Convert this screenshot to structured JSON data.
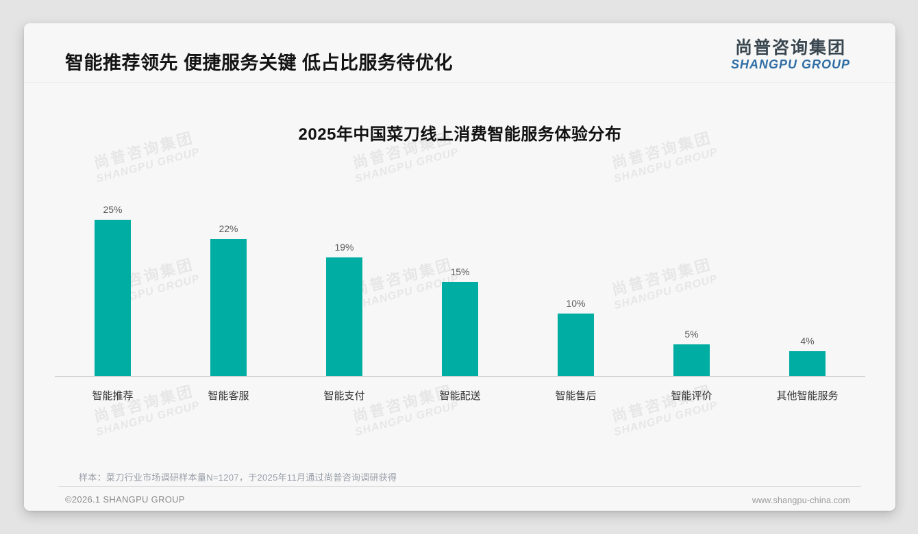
{
  "page": {
    "title": "智能推荐领先 便捷服务关键 低占比服务待优化",
    "logo": {
      "cn": "尚普咨询集团",
      "en": "SHANGPU GROUP"
    },
    "watermark": {
      "cn": "尚普咨询集团",
      "en": "SHANGPU GROUP"
    },
    "note": "样本：菜刀行业市场调研样本量N=1207，于2025年11月通过尚普咨询调研获得",
    "footer": {
      "left": "©2026.1 SHANGPU GROUP",
      "right": "www.shangpu-china.com"
    }
  },
  "chart_data": {
    "type": "bar",
    "title": "2025年中国菜刀线上消费智能服务体验分布",
    "categories": [
      "智能推荐",
      "智能客服",
      "智能支付",
      "智能配送",
      "智能售后",
      "智能评价",
      "其他智能服务"
    ],
    "values": [
      25,
      22,
      19,
      15,
      10,
      5,
      4
    ],
    "unit": "%",
    "value_labels": [
      "25%",
      "22%",
      "19%",
      "15%",
      "10%",
      "5%",
      "4%"
    ],
    "bar_color": "#00ADA2",
    "ylim": [
      0,
      27
    ],
    "grid": false,
    "legend": false,
    "xlabel": "",
    "ylabel": ""
  },
  "layout_colors": {
    "accent_teal": "#00ADA2",
    "logo_cn": "#3A4750",
    "logo_en": "#2E6DA4",
    "card_bg": "#F7F7F7",
    "page_bg": "#E4E4E4"
  }
}
